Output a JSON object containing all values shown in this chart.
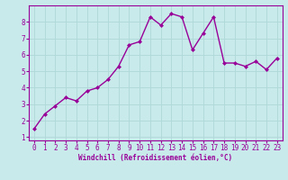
{
  "x": [
    0,
    1,
    2,
    3,
    4,
    5,
    6,
    7,
    8,
    9,
    10,
    11,
    12,
    13,
    14,
    15,
    16,
    17,
    18,
    19,
    20,
    21,
    22,
    23
  ],
  "y": [
    1.5,
    2.4,
    2.9,
    3.4,
    3.2,
    3.8,
    4.0,
    4.5,
    5.3,
    6.6,
    6.8,
    8.3,
    7.8,
    8.5,
    8.3,
    6.3,
    7.3,
    8.3,
    5.5,
    5.5,
    5.3,
    5.6,
    5.1,
    5.8
  ],
  "line_color": "#990099",
  "marker": "D",
  "marker_size": 2.0,
  "bg_color": "#c8eaea",
  "grid_color": "#b0d8d8",
  "xlabel": "Windchill (Refroidissement éolien,°C)",
  "xlabel_color": "#990099",
  "tick_color": "#990099",
  "ylim": [
    0.8,
    9.0
  ],
  "xlim": [
    -0.5,
    23.5
  ],
  "yticks": [
    1,
    2,
    3,
    4,
    5,
    6,
    7,
    8
  ],
  "xticks": [
    0,
    1,
    2,
    3,
    4,
    5,
    6,
    7,
    8,
    9,
    10,
    11,
    12,
    13,
    14,
    15,
    16,
    17,
    18,
    19,
    20,
    21,
    22,
    23
  ],
  "spine_color": "#990099",
  "line_width": 1.0,
  "tick_fontsize": 5.5,
  "xlabel_fontsize": 5.5
}
